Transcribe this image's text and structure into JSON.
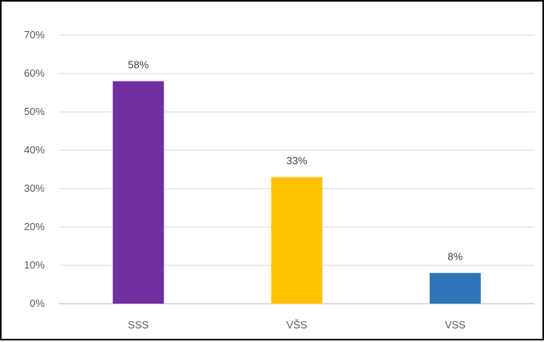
{
  "chart_data": {
    "type": "bar",
    "categories": [
      "SSS",
      "VŠS",
      "VSS"
    ],
    "values": [
      58,
      33,
      8
    ],
    "data_labels": [
      "58%",
      "33%",
      "8%"
    ],
    "colors": [
      "#7030A0",
      "#FFC000",
      "#2E75B6"
    ],
    "ylim": [
      0,
      70
    ],
    "yticks": [
      0,
      10,
      20,
      30,
      40,
      50,
      60,
      70
    ],
    "ytick_labels": [
      "0%",
      "10%",
      "20%",
      "30%",
      "40%",
      "50%",
      "60%",
      "70%"
    ],
    "grid": true,
    "legend": "none",
    "title": "",
    "xlabel": "",
    "ylabel": ""
  }
}
